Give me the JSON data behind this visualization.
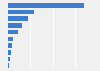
{
  "values": [
    850,
    290,
    230,
    160,
    110,
    60,
    45,
    35,
    20,
    12
  ],
  "bar_color": "#3d7ed1",
  "background_color": "#f0f0f0",
  "grid_color": "#ffffff",
  "xmax": 1000,
  "bar_height": 0.7,
  "n_gridlines": 4
}
